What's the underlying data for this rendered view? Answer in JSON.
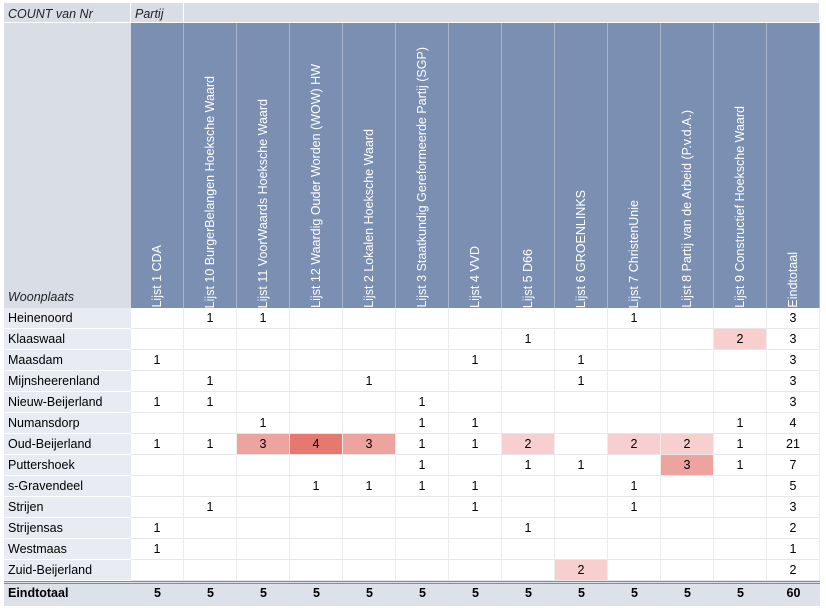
{
  "pivot": {
    "corner_label": "COUNT van Nr",
    "column_field_label": "Partij",
    "row_field_label": "Woonplaats",
    "columns": [
      "Lijst 1 CDA",
      "Lijst 10 BurgerBelangen Hoeksche Waard",
      "Lijst 11 VoorWaards Hoeksche Waard",
      "Lijst 12 Waardig Ouder Worden (WOW) HW",
      "Lijst 2 Lokalen Hoeksche Waard",
      "Lijst 3 Staatkundig Gereformeerde Partij (SGP)",
      "Lijst 4 VVD",
      "Lijst 5 D66",
      "Lijst 6 GROENLINKS",
      "Lijst 7 ChristenUnie",
      "Lijst 8 Partij van de Arbeid (P.v.d.A.)",
      "Lijst 9 Constructief Hoeksche Waard",
      "Eindtotaal"
    ],
    "rows": [
      {
        "label": "Heinenoord",
        "values": [
          "",
          "1",
          "1",
          "",
          "",
          "",
          "",
          "",
          "",
          "1",
          "",
          "",
          "3"
        ]
      },
      {
        "label": "Klaaswaal",
        "values": [
          "",
          "",
          "",
          "",
          "",
          "",
          "",
          "1",
          "",
          "",
          "",
          "2",
          "3"
        ]
      },
      {
        "label": "Maasdam",
        "values": [
          "1",
          "",
          "",
          "",
          "",
          "",
          "1",
          "",
          "1",
          "",
          "",
          "",
          "3"
        ]
      },
      {
        "label": "Mijnsheerenland",
        "values": [
          "",
          "1",
          "",
          "",
          "1",
          "",
          "",
          "",
          "1",
          "",
          "",
          "",
          "3"
        ]
      },
      {
        "label": "Nieuw-Beijerland",
        "values": [
          "1",
          "1",
          "",
          "",
          "",
          "1",
          "",
          "",
          "",
          "",
          "",
          "",
          "3"
        ]
      },
      {
        "label": "Numansdorp",
        "values": [
          "",
          "",
          "1",
          "",
          "",
          "1",
          "1",
          "",
          "",
          "",
          "",
          "1",
          "4"
        ]
      },
      {
        "label": "Oud-Beijerland",
        "values": [
          "1",
          "1",
          "3",
          "4",
          "3",
          "1",
          "1",
          "2",
          "",
          "2",
          "2",
          "1",
          "21"
        ]
      },
      {
        "label": "Puttershoek",
        "values": [
          "",
          "",
          "",
          "",
          "",
          "1",
          "",
          "1",
          "1",
          "",
          "3",
          "1",
          "7"
        ]
      },
      {
        "label": "s-Gravendeel",
        "values": [
          "",
          "",
          "",
          "1",
          "1",
          "1",
          "1",
          "",
          "",
          "1",
          "",
          "",
          "5"
        ]
      },
      {
        "label": "Strijen",
        "values": [
          "",
          "1",
          "",
          "",
          "",
          "",
          "1",
          "",
          "",
          "1",
          "",
          "",
          "3"
        ]
      },
      {
        "label": "Strijensas",
        "values": [
          "1",
          "",
          "",
          "",
          "",
          "",
          "",
          "1",
          "",
          "",
          "",
          "",
          "2"
        ]
      },
      {
        "label": "Westmaas",
        "values": [
          "1",
          "",
          "",
          "",
          "",
          "",
          "",
          "",
          "",
          "",
          "",
          "",
          "1"
        ]
      },
      {
        "label": "Zuid-Beijerland",
        "values": [
          "",
          "",
          "",
          "",
          "",
          "",
          "",
          "",
          "2",
          "",
          "",
          "",
          "2"
        ]
      }
    ],
    "total_row": {
      "label": "Eindtotaal",
      "values": [
        "5",
        "5",
        "5",
        "5",
        "5",
        "5",
        "5",
        "5",
        "5",
        "5",
        "5",
        "5",
        "60"
      ]
    },
    "heat_colors": {
      "2": "#f8cfcf",
      "3": "#eda39e",
      "4": "#e6796f"
    }
  }
}
